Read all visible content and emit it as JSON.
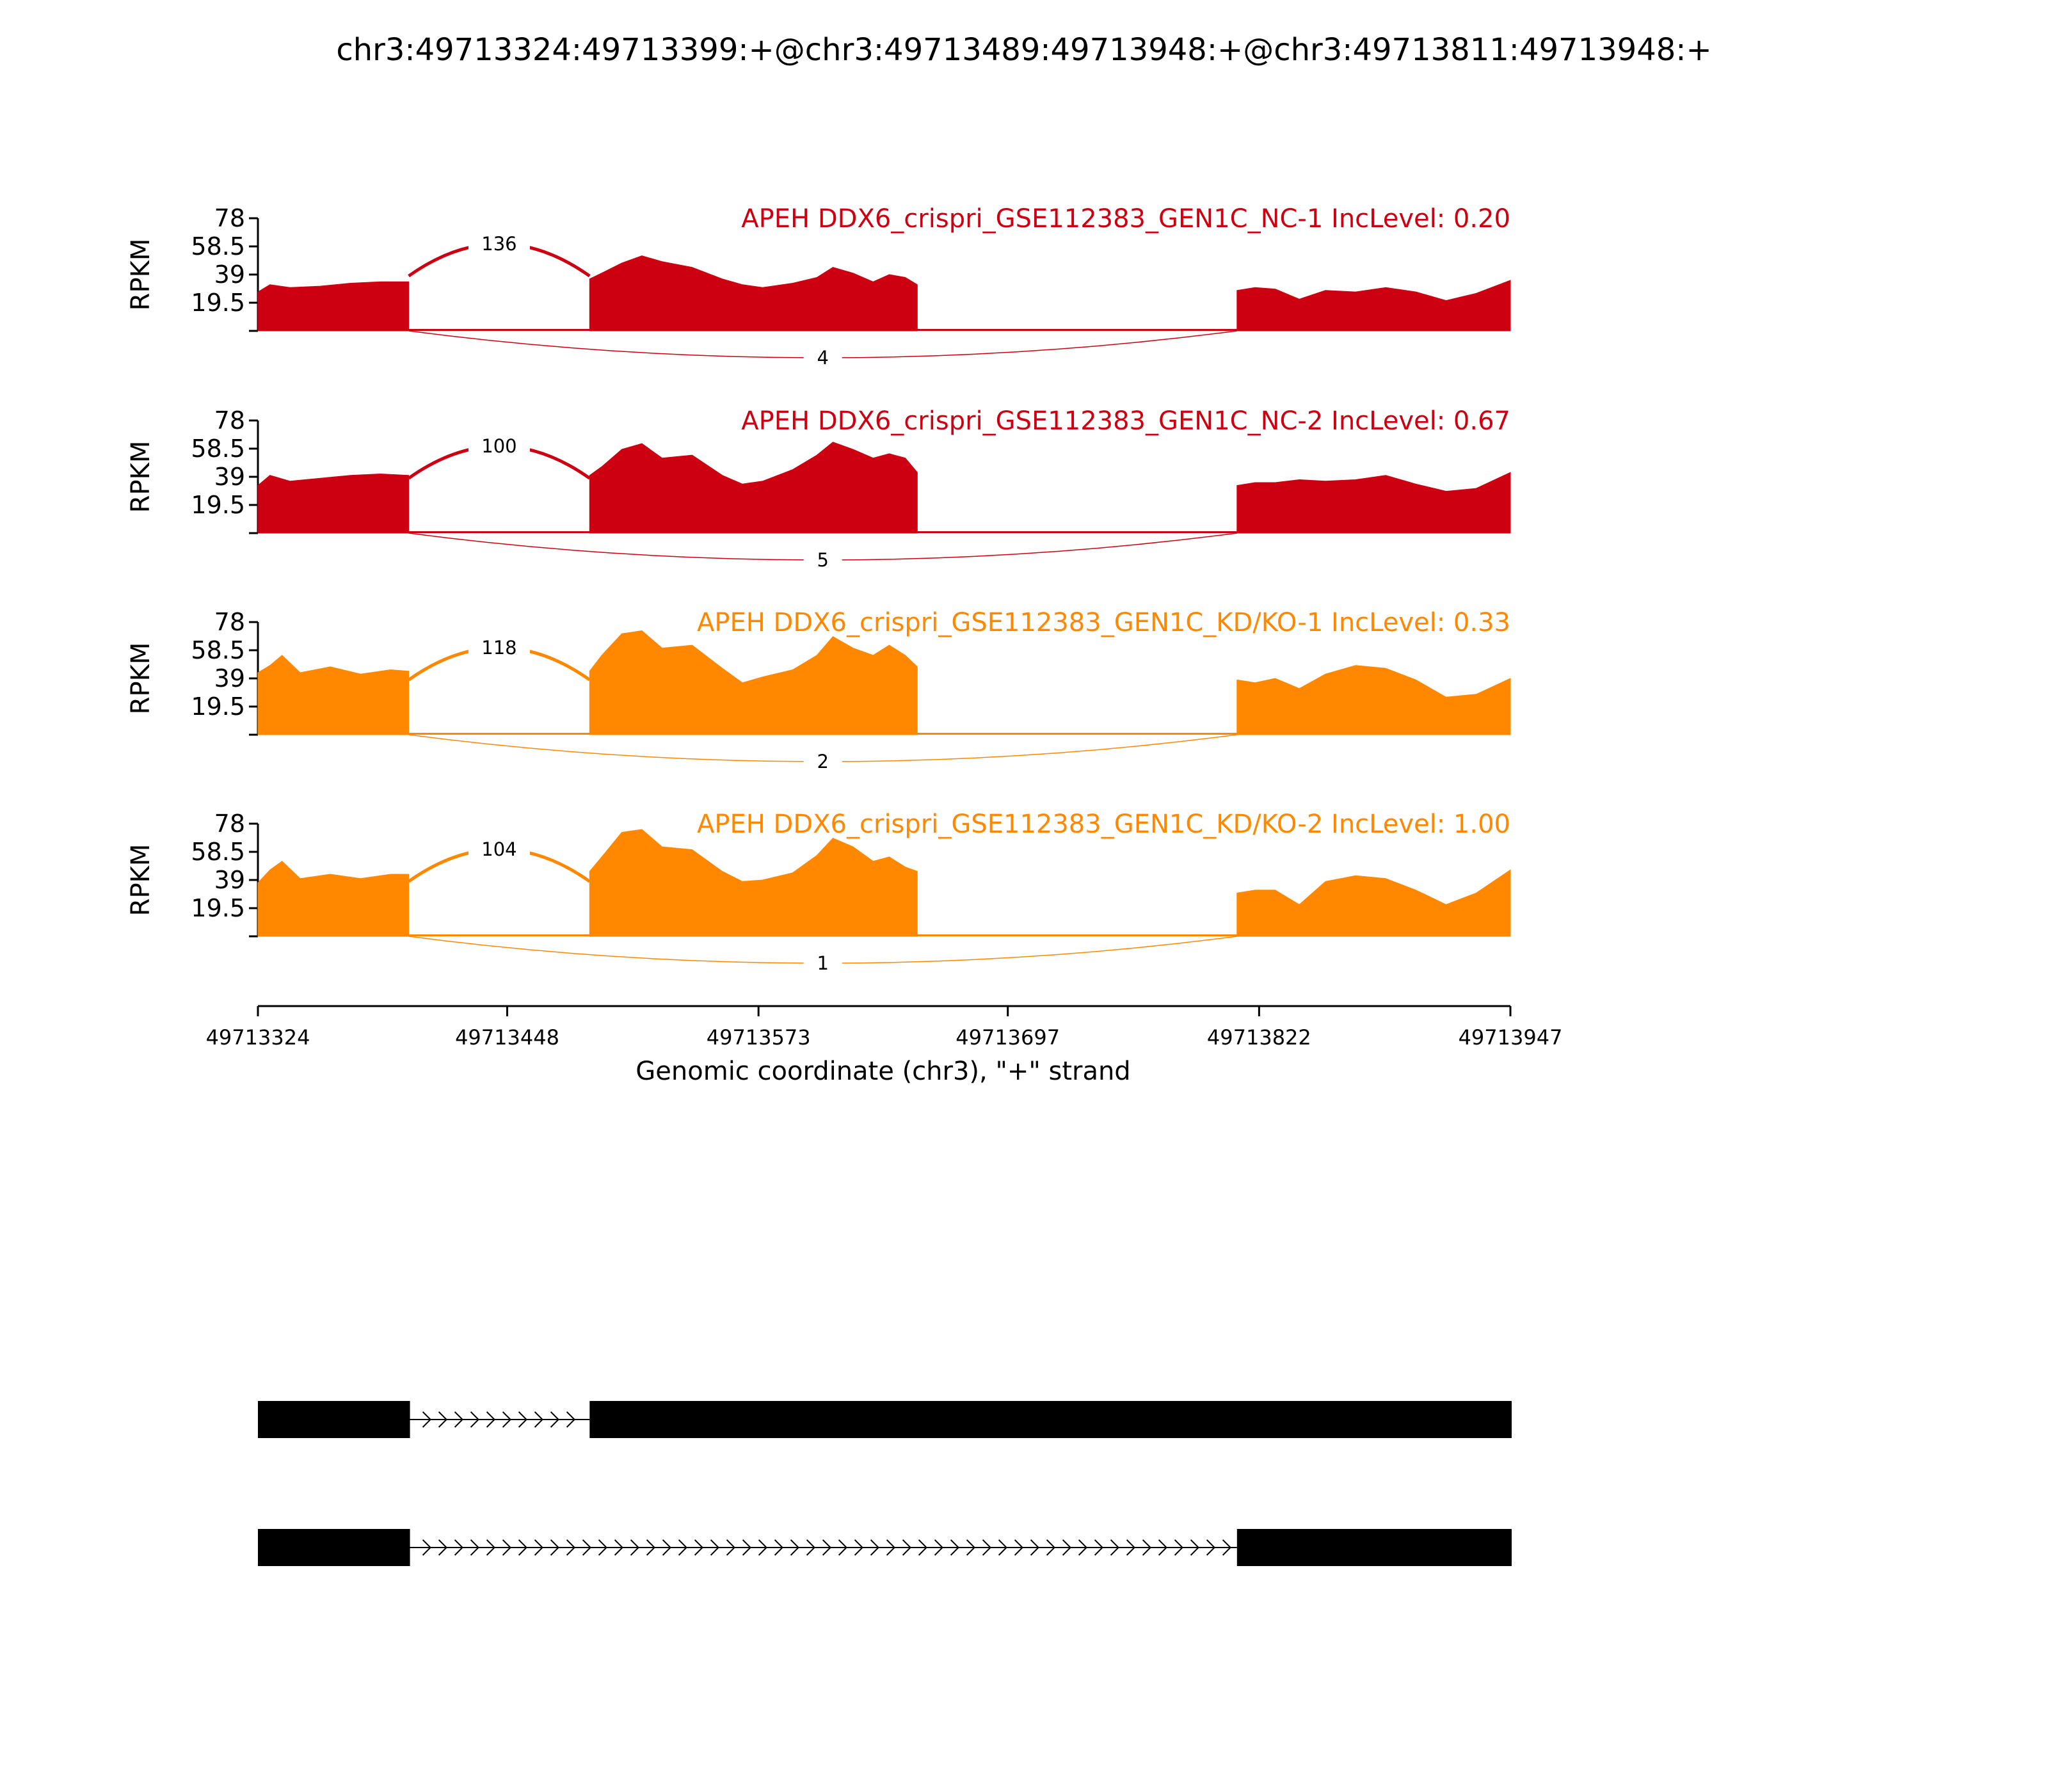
{
  "title": "chr3:49713324:49713399:+@chr3:49713489:49713948:+@chr3:49713811:49713948:+",
  "chart_data": {
    "type": "area",
    "subtype": "sashimi",
    "ylabel": "RPKM",
    "xlabel": "Genomic coordinate (chr3), \"+\" strand",
    "xlim": [
      49713324,
      49713947
    ],
    "ylim": [
      0,
      78
    ],
    "yticks": [
      19.5,
      39,
      58.5,
      78
    ],
    "ytick_labels": [
      "19.5",
      "39",
      "58.5",
      "78"
    ],
    "xticks": [
      49713324,
      49713448,
      49713573,
      49713697,
      49713822,
      49713947
    ],
    "xtick_labels": [
      "49713324",
      "49713448",
      "49713573",
      "49713697",
      "49713822",
      "49713947"
    ],
    "exons": [
      [
        49713324,
        49713399
      ],
      [
        49713489,
        49713652
      ],
      [
        49713811,
        49713947
      ]
    ],
    "series": [
      {
        "name": "APEH DDX6_crispri_GSE112383_GEN1C_NC-1 IncLevel: 0.20",
        "color": "#cc0011",
        "profile": [
          {
            "x": 49713324,
            "y": 27
          },
          {
            "x": 49713330,
            "y": 32
          },
          {
            "x": 49713340,
            "y": 30
          },
          {
            "x": 49713355,
            "y": 31
          },
          {
            "x": 49713370,
            "y": 33
          },
          {
            "x": 49713385,
            "y": 34
          },
          {
            "x": 49713399,
            "y": 34
          },
          {
            "x": 49713489,
            "y": 36
          },
          {
            "x": 49713495,
            "y": 40
          },
          {
            "x": 49713505,
            "y": 47
          },
          {
            "x": 49713515,
            "y": 52
          },
          {
            "x": 49713525,
            "y": 48
          },
          {
            "x": 49713540,
            "y": 44
          },
          {
            "x": 49713555,
            "y": 36
          },
          {
            "x": 49713565,
            "y": 32
          },
          {
            "x": 49713575,
            "y": 30
          },
          {
            "x": 49713590,
            "y": 33
          },
          {
            "x": 49713602,
            "y": 37
          },
          {
            "x": 49713610,
            "y": 44
          },
          {
            "x": 49713620,
            "y": 40
          },
          {
            "x": 49713630,
            "y": 34
          },
          {
            "x": 49713638,
            "y": 39
          },
          {
            "x": 49713646,
            "y": 37
          },
          {
            "x": 49713652,
            "y": 32
          },
          {
            "x": 49713811,
            "y": 28
          },
          {
            "x": 49713820,
            "y": 30
          },
          {
            "x": 49713830,
            "y": 29
          },
          {
            "x": 49713842,
            "y": 22
          },
          {
            "x": 49713855,
            "y": 28
          },
          {
            "x": 49713870,
            "y": 27
          },
          {
            "x": 49713885,
            "y": 30
          },
          {
            "x": 49713900,
            "y": 27
          },
          {
            "x": 49713915,
            "y": 21
          },
          {
            "x": 49713930,
            "y": 26
          },
          {
            "x": 49713947,
            "y": 35
          }
        ],
        "junctions": [
          {
            "from": 49713399,
            "to": 49713489,
            "count": "136",
            "side": "above"
          },
          {
            "from": 49713399,
            "to": 49713811,
            "count": "4",
            "side": "below"
          }
        ]
      },
      {
        "name": "APEH DDX6_crispri_GSE112383_GEN1C_NC-2 IncLevel: 0.67",
        "color": "#cc0011",
        "profile": [
          {
            "x": 49713324,
            "y": 33
          },
          {
            "x": 49713330,
            "y": 40
          },
          {
            "x": 49713340,
            "y": 36
          },
          {
            "x": 49713355,
            "y": 38
          },
          {
            "x": 49713370,
            "y": 40
          },
          {
            "x": 49713385,
            "y": 41
          },
          {
            "x": 49713399,
            "y": 40
          },
          {
            "x": 49713489,
            "y": 40
          },
          {
            "x": 49713495,
            "y": 46
          },
          {
            "x": 49713505,
            "y": 58
          },
          {
            "x": 49713515,
            "y": 62
          },
          {
            "x": 49713525,
            "y": 52
          },
          {
            "x": 49713540,
            "y": 54
          },
          {
            "x": 49713555,
            "y": 40
          },
          {
            "x": 49713565,
            "y": 34
          },
          {
            "x": 49713575,
            "y": 36
          },
          {
            "x": 49713590,
            "y": 44
          },
          {
            "x": 49713602,
            "y": 54
          },
          {
            "x": 49713610,
            "y": 63
          },
          {
            "x": 49713620,
            "y": 58
          },
          {
            "x": 49713630,
            "y": 52
          },
          {
            "x": 49713638,
            "y": 55
          },
          {
            "x": 49713646,
            "y": 52
          },
          {
            "x": 49713652,
            "y": 42
          },
          {
            "x": 49713811,
            "y": 33
          },
          {
            "x": 49713820,
            "y": 35
          },
          {
            "x": 49713830,
            "y": 35
          },
          {
            "x": 49713842,
            "y": 37
          },
          {
            "x": 49713855,
            "y": 36
          },
          {
            "x": 49713870,
            "y": 37
          },
          {
            "x": 49713885,
            "y": 40
          },
          {
            "x": 49713900,
            "y": 34
          },
          {
            "x": 49713915,
            "y": 29
          },
          {
            "x": 49713930,
            "y": 31
          },
          {
            "x": 49713947,
            "y": 42
          }
        ],
        "junctions": [
          {
            "from": 49713399,
            "to": 49713489,
            "count": "100",
            "side": "above"
          },
          {
            "from": 49713399,
            "to": 49713811,
            "count": "5",
            "side": "below"
          }
        ]
      },
      {
        "name": "APEH DDX6_crispri_GSE112383_GEN1C_KD/KO-1 IncLevel: 0.33",
        "color": "#ff8800",
        "profile": [
          {
            "x": 49713324,
            "y": 43
          },
          {
            "x": 49713330,
            "y": 48
          },
          {
            "x": 49713336,
            "y": 55
          },
          {
            "x": 49713345,
            "y": 43
          },
          {
            "x": 49713360,
            "y": 47
          },
          {
            "x": 49713375,
            "y": 42
          },
          {
            "x": 49713390,
            "y": 45
          },
          {
            "x": 49713399,
            "y": 44
          },
          {
            "x": 49713489,
            "y": 44
          },
          {
            "x": 49713495,
            "y": 55
          },
          {
            "x": 49713505,
            "y": 70
          },
          {
            "x": 49713515,
            "y": 72
          },
          {
            "x": 49713525,
            "y": 60
          },
          {
            "x": 49713540,
            "y": 62
          },
          {
            "x": 49713555,
            "y": 46
          },
          {
            "x": 49713565,
            "y": 36
          },
          {
            "x": 49713575,
            "y": 40
          },
          {
            "x": 49713590,
            "y": 45
          },
          {
            "x": 49713602,
            "y": 55
          },
          {
            "x": 49713610,
            "y": 68
          },
          {
            "x": 49713620,
            "y": 60
          },
          {
            "x": 49713630,
            "y": 55
          },
          {
            "x": 49713638,
            "y": 62
          },
          {
            "x": 49713646,
            "y": 55
          },
          {
            "x": 49713652,
            "y": 47
          },
          {
            "x": 49713811,
            "y": 38
          },
          {
            "x": 49713820,
            "y": 36
          },
          {
            "x": 49713830,
            "y": 39
          },
          {
            "x": 49713842,
            "y": 32
          },
          {
            "x": 49713855,
            "y": 42
          },
          {
            "x": 49713870,
            "y": 48
          },
          {
            "x": 49713885,
            "y": 46
          },
          {
            "x": 49713900,
            "y": 38
          },
          {
            "x": 49713915,
            "y": 26
          },
          {
            "x": 49713930,
            "y": 28
          },
          {
            "x": 49713947,
            "y": 39
          }
        ],
        "junctions": [
          {
            "from": 49713399,
            "to": 49713489,
            "count": "118",
            "side": "above"
          },
          {
            "from": 49713399,
            "to": 49713811,
            "count": "2",
            "side": "below"
          }
        ]
      },
      {
        "name": "APEH DDX6_crispri_GSE112383_GEN1C_KD/KO-2 IncLevel: 1.00",
        "color": "#ff8800",
        "profile": [
          {
            "x": 49713324,
            "y": 37
          },
          {
            "x": 49713330,
            "y": 46
          },
          {
            "x": 49713336,
            "y": 52
          },
          {
            "x": 49713345,
            "y": 40
          },
          {
            "x": 49713360,
            "y": 43
          },
          {
            "x": 49713375,
            "y": 40
          },
          {
            "x": 49713390,
            "y": 43
          },
          {
            "x": 49713399,
            "y": 43
          },
          {
            "x": 49713489,
            "y": 45
          },
          {
            "x": 49713495,
            "y": 55
          },
          {
            "x": 49713505,
            "y": 72
          },
          {
            "x": 49713515,
            "y": 74
          },
          {
            "x": 49713525,
            "y": 62
          },
          {
            "x": 49713540,
            "y": 60
          },
          {
            "x": 49713555,
            "y": 45
          },
          {
            "x": 49713565,
            "y": 38
          },
          {
            "x": 49713575,
            "y": 39
          },
          {
            "x": 49713590,
            "y": 44
          },
          {
            "x": 49713602,
            "y": 56
          },
          {
            "x": 49713610,
            "y": 68
          },
          {
            "x": 49713620,
            "y": 62
          },
          {
            "x": 49713630,
            "y": 52
          },
          {
            "x": 49713638,
            "y": 55
          },
          {
            "x": 49713646,
            "y": 48
          },
          {
            "x": 49713652,
            "y": 45
          },
          {
            "x": 49713811,
            "y": 30
          },
          {
            "x": 49713820,
            "y": 32
          },
          {
            "x": 49713830,
            "y": 32
          },
          {
            "x": 49713842,
            "y": 22
          },
          {
            "x": 49713855,
            "y": 38
          },
          {
            "x": 49713870,
            "y": 42
          },
          {
            "x": 49713885,
            "y": 40
          },
          {
            "x": 49713900,
            "y": 32
          },
          {
            "x": 49713915,
            "y": 22
          },
          {
            "x": 49713930,
            "y": 30
          },
          {
            "x": 49713947,
            "y": 46
          }
        ],
        "junctions": [
          {
            "from": 49713399,
            "to": 49713489,
            "count": "104",
            "side": "above"
          },
          {
            "from": 49713399,
            "to": 49713811,
            "count": "1",
            "side": "below"
          }
        ]
      }
    ],
    "isoforms": [
      {
        "exons": [
          [
            49713324,
            49713399
          ],
          [
            49713489,
            49713947
          ]
        ]
      },
      {
        "exons": [
          [
            49713324,
            49713399
          ],
          [
            49713811,
            49713947
          ]
        ]
      }
    ]
  }
}
